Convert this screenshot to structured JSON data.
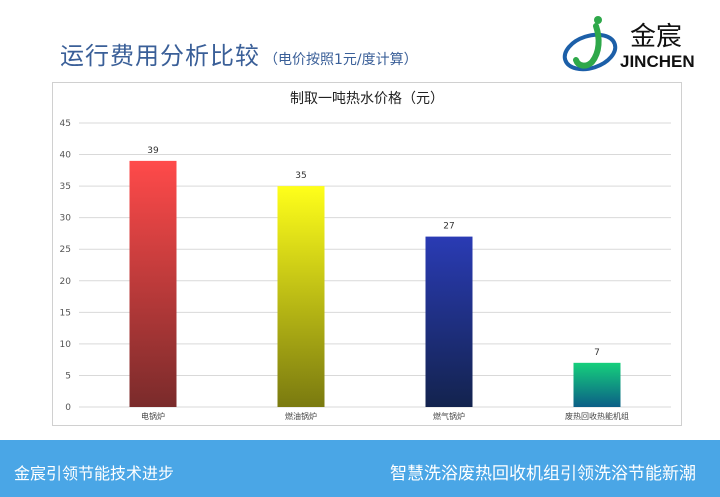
{
  "header": {
    "title": "运行费用分析比较",
    "subtitle": "（电价按照1元/度计算）"
  },
  "logo": {
    "name_cn": "金宸",
    "name_en": "JINCHEN"
  },
  "chart_data": {
    "type": "bar",
    "title": "制取一吨热水价格（元）",
    "xlabel": "",
    "ylabel": "",
    "ylim": [
      0,
      45
    ],
    "yticks": [
      0,
      5,
      10,
      15,
      20,
      25,
      30,
      35,
      40,
      45
    ],
    "grid": true,
    "categories": [
      "电锅炉",
      "燃油锅炉",
      "燃气锅炉",
      "废热回收热能机组"
    ],
    "values": [
      39,
      35,
      27,
      7
    ],
    "colors": [
      [
        "#ff4a4a",
        "#7a2b2b"
      ],
      [
        "#ffff1a",
        "#7a7a10"
      ],
      [
        "#2a3bb4",
        "#13234e"
      ],
      [
        "#16d07c",
        "#0b5e86"
      ]
    ]
  },
  "footer": {
    "left_text": "金宸引领节能技术进步",
    "right_text": "智慧洗浴废热回收机组引领洗浴节能新潮"
  }
}
